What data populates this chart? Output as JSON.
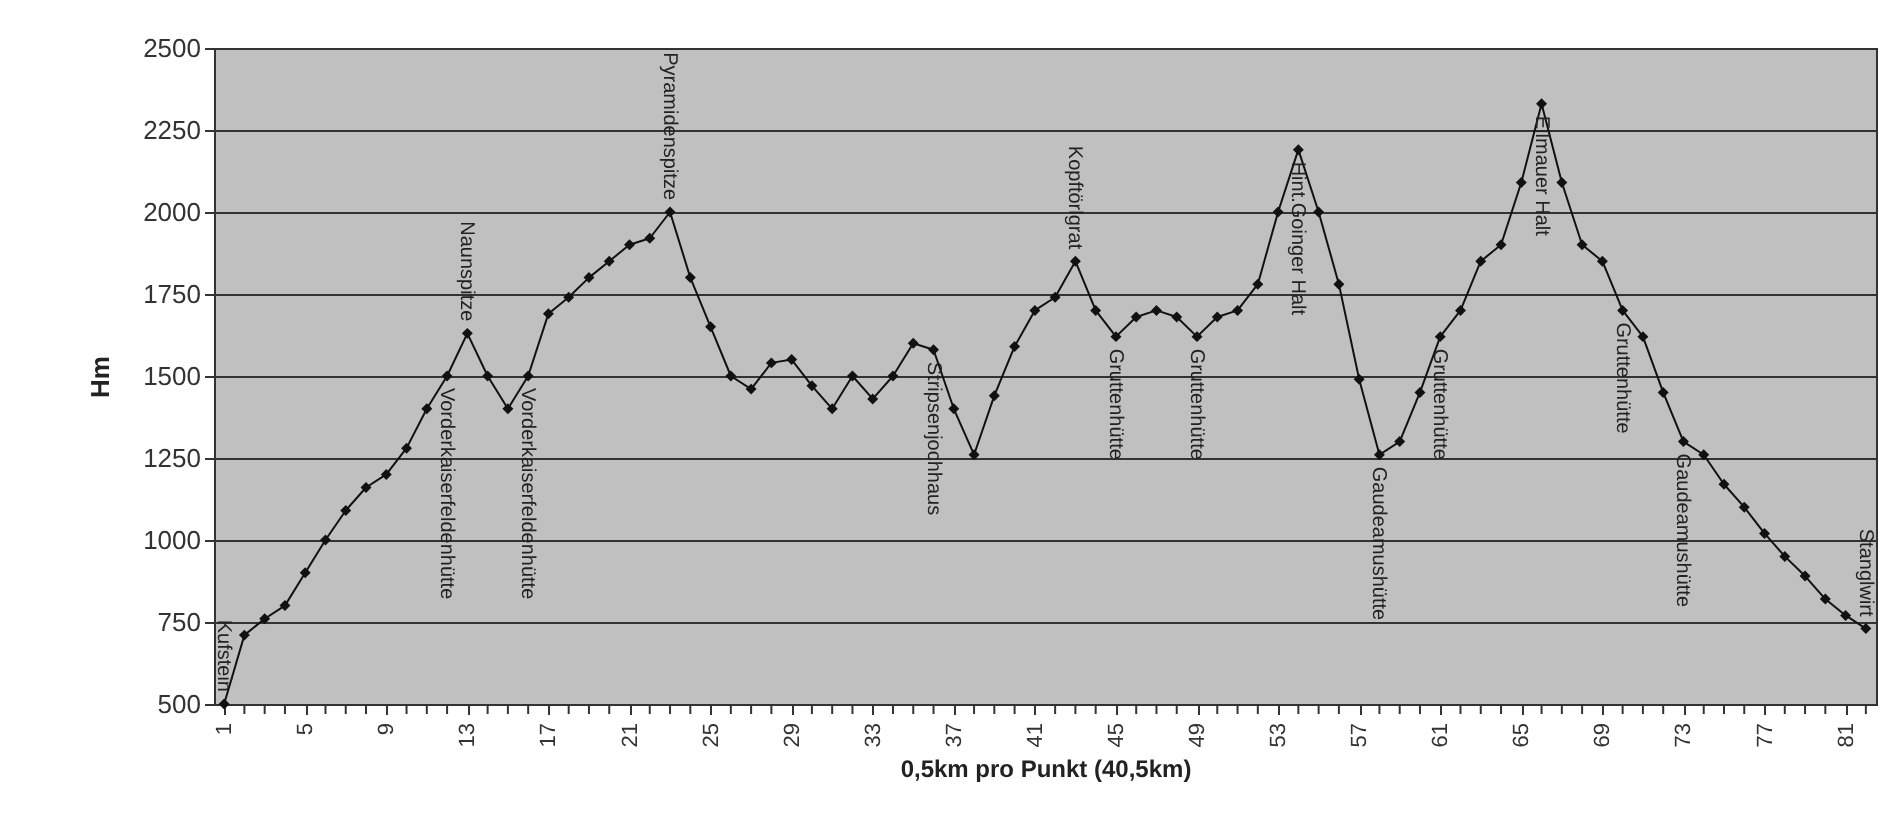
{
  "chart_data": {
    "type": "line",
    "xlabel": "0,5km pro Punkt (40,5km)",
    "ylabel": "Hm",
    "x": [
      1,
      2,
      3,
      4,
      5,
      6,
      7,
      8,
      9,
      10,
      11,
      12,
      13,
      14,
      15,
      16,
      17,
      18,
      19,
      20,
      21,
      22,
      23,
      24,
      25,
      26,
      27,
      28,
      29,
      30,
      31,
      32,
      33,
      34,
      35,
      36,
      37,
      38,
      39,
      40,
      41,
      42,
      43,
      44,
      45,
      46,
      47,
      48,
      49,
      50,
      51,
      52,
      53,
      54,
      55,
      56,
      57,
      58,
      59,
      60,
      61,
      62,
      63,
      64,
      65,
      66,
      67,
      68,
      69,
      70,
      71,
      72,
      73,
      74,
      75,
      76,
      77,
      78,
      79,
      80,
      81,
      82
    ],
    "series": [
      {
        "color": "#111111",
        "values": [
          500,
          710,
          760,
          800,
          900,
          1000,
          1090,
          1160,
          1200,
          1280,
          1400,
          1500,
          1630,
          1500,
          1400,
          1500,
          1690,
          1740,
          1800,
          1850,
          1900,
          1920,
          2000,
          1800,
          1650,
          1500,
          1460,
          1540,
          1550,
          1470,
          1400,
          1500,
          1430,
          1500,
          1600,
          1580,
          1400,
          1260,
          1440,
          1590,
          1700,
          1740,
          1850,
          1700,
          1620,
          1680,
          1700,
          1680,
          1620,
          1680,
          1700,
          1780,
          2000,
          2190,
          2000,
          1780,
          1490,
          1260,
          1300,
          1450,
          1620,
          1700,
          1850,
          1900,
          2090,
          2330,
          2090,
          1900,
          1850,
          1700,
          1620,
          1450,
          1300,
          1260,
          1170,
          1100,
          1020,
          950,
          890,
          820,
          770,
          730
        ]
      }
    ],
    "marker": "diamond",
    "grid": "y",
    "ylim": [
      500,
      2500
    ],
    "yticks": [
      500,
      750,
      1000,
      1250,
      1500,
      1750,
      2000,
      2250,
      2500
    ],
    "xlim": [
      0.5,
      82.5
    ],
    "xticks": [
      1,
      {
        "value": 2,
        "label": null
      },
      {
        "value": 3,
        "label": null
      },
      {
        "value": 4,
        "label": null
      },
      5,
      {
        "value": 6,
        "label": null
      },
      {
        "value": 7,
        "label": null
      },
      {
        "value": 8,
        "label": null
      },
      9,
      {
        "value": 10,
        "label": null
      },
      {
        "value": 11,
        "label": null
      },
      {
        "value": 12,
        "label": null
      },
      13,
      {
        "value": 14,
        "label": null
      },
      {
        "value": 15,
        "label": null
      },
      {
        "value": 16,
        "label": null
      },
      17,
      {
        "value": 18,
        "label": null
      },
      {
        "value": 19,
        "label": null
      },
      {
        "value": 20,
        "label": null
      },
      21,
      {
        "value": 22,
        "label": null
      },
      {
        "value": 23,
        "label": null
      },
      {
        "value": 24,
        "label": null
      },
      25,
      {
        "value": 26,
        "label": null
      },
      {
        "value": 27,
        "label": null
      },
      {
        "value": 28,
        "label": null
      },
      29,
      {
        "value": 30,
        "label": null
      },
      {
        "value": 31,
        "label": null
      },
      {
        "value": 32,
        "label": null
      },
      33,
      {
        "value": 34,
        "label": null
      },
      {
        "value": 35,
        "label": null
      },
      {
        "value": 36,
        "label": null
      },
      37,
      {
        "value": 38,
        "label": null
      },
      {
        "value": 39,
        "label": null
      },
      {
        "value": 40,
        "label": null
      },
      41,
      {
        "value": 42,
        "label": null
      },
      {
        "value": 43,
        "label": null
      },
      {
        "value": 44,
        "label": null
      },
      45,
      {
        "value": 46,
        "label": null
      },
      {
        "value": 47,
        "label": null
      },
      {
        "value": 48,
        "label": null
      },
      49,
      {
        "value": 50,
        "label": null
      },
      {
        "value": 51,
        "label": null
      },
      {
        "value": 52,
        "label": null
      },
      53,
      {
        "value": 54,
        "label": null
      },
      {
        "value": 55,
        "label": null
      },
      {
        "value": 56,
        "label": null
      },
      57,
      {
        "value": 58,
        "label": null
      },
      {
        "value": 59,
        "label": null
      },
      {
        "value": 60,
        "label": null
      },
      61,
      {
        "value": 62,
        "label": null
      },
      {
        "value": 63,
        "label": null
      },
      {
        "value": 64,
        "label": null
      },
      65,
      {
        "value": 66,
        "label": null
      },
      {
        "value": 67,
        "label": null
      },
      {
        "value": 68,
        "label": null
      },
      69,
      {
        "value": 70,
        "label": null
      },
      {
        "value": 71,
        "label": null
      },
      {
        "value": 72,
        "label": null
      },
      73,
      {
        "value": 74,
        "label": null
      },
      {
        "value": 75,
        "label": null
      },
      {
        "value": 76,
        "label": null
      },
      77,
      {
        "value": 78,
        "label": null
      },
      {
        "value": 79,
        "label": null
      },
      {
        "value": 80,
        "label": null
      },
      81,
      {
        "value": 82,
        "label": null
      }
    ],
    "annotations": [
      {
        "text": "Kufstein",
        "x": 1,
        "y": 500
      },
      {
        "text": "Vorderkaiserfeldenhütte",
        "x": 12,
        "y": 1500
      },
      {
        "text": "Naunspitze",
        "x": 13,
        "y": 1630
      },
      {
        "text": "Vorderkaiserfeldenhütte",
        "x": 16,
        "y": 1500
      },
      {
        "text": "Pyramidenspitze",
        "x": 23,
        "y": 2000
      },
      {
        "text": "Stripsenjochhaus",
        "x": 36,
        "y": 1580
      },
      {
        "text": "Kopftörlgrat",
        "x": 43,
        "y": 1850
      },
      {
        "text": "Gruttenhütte",
        "x": 45,
        "y": 1620
      },
      {
        "text": "Gruttenhütte",
        "x": 49,
        "y": 1620
      },
      {
        "text": "Hint.Goinger Halt",
        "x": 54,
        "y": 2190
      },
      {
        "text": "Gaudeamushütte",
        "x": 58,
        "y": 1260
      },
      {
        "text": "Gruttenhütte",
        "x": 61,
        "y": 1620
      },
      {
        "text": "Ellmauer Halt",
        "x": 66,
        "y": 2330
      },
      {
        "text": "Gruttenhütte",
        "x": 70,
        "y": 1700
      },
      {
        "text": "Gaudeamushütte",
        "x": 73,
        "y": 1300
      },
      {
        "text": "Stanglwirt",
        "x": 82,
        "y": 730
      }
    ]
  }
}
